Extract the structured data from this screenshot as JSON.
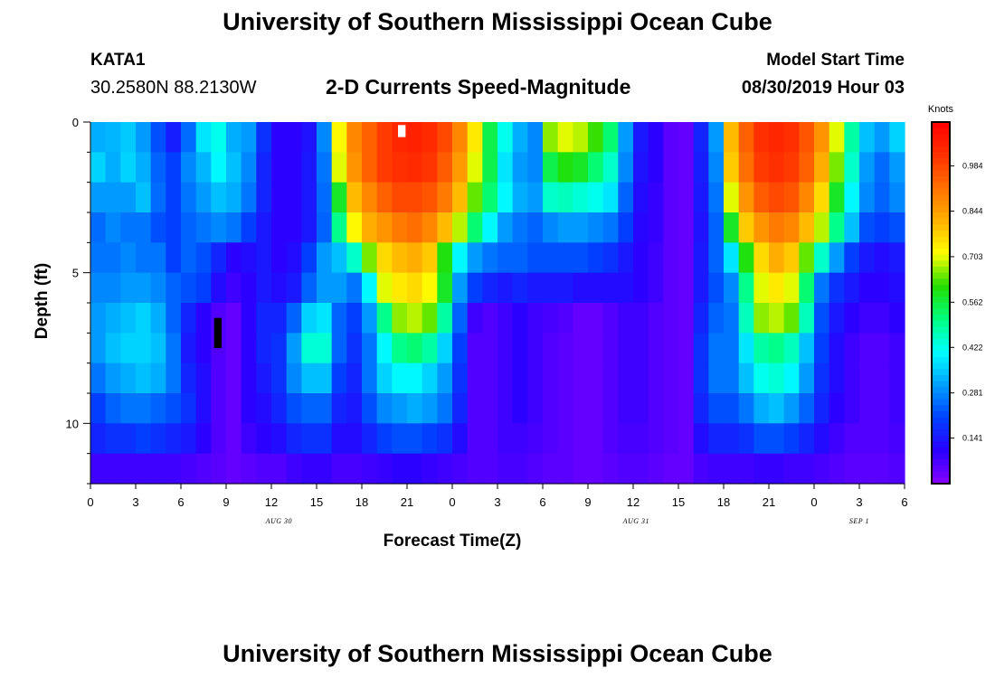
{
  "page": {
    "title_top": "University of Southern Mississippi Ocean Cube",
    "title_bottom": "University of Southern Mississippi Ocean Cube",
    "station_id": "KATA1",
    "station_coords": "30.2580N 88.2130W",
    "subtitle": "2-D Currents Speed-Magnitude",
    "model_start_label": "Model Start Time",
    "model_start_value": "08/30/2019 Hour 03"
  },
  "colors": {
    "background": "#ffffff",
    "ramp": [
      "#8800ff",
      "#2a00ff",
      "#0040ff",
      "#00a0ff",
      "#00ffff",
      "#00ff80",
      "#22dd00",
      "#ffff00",
      "#ffb000",
      "#ff7000",
      "#ff3000",
      "#ff0000"
    ]
  },
  "chart_data": {
    "type": "heatmap",
    "xlabel": "Forecast Time(Z)",
    "ylabel": "Depth (ft)",
    "colorbar_unit": "Knots",
    "colorbar_ticks": [
      "0.984",
      "0.844",
      "0.703",
      "0.562",
      "0.422",
      "0.281",
      "0.141"
    ],
    "colorbar_tick_values": [
      0.984,
      0.844,
      0.703,
      0.562,
      0.422,
      0.281,
      0.141
    ],
    "color_range": [
      0,
      1.12
    ],
    "x_hours_range": [
      0,
      54
    ],
    "y_depth_range": [
      0,
      12
    ],
    "x_tick_hours": [
      0,
      3,
      6,
      9,
      12,
      15,
      18,
      21,
      24,
      27,
      30,
      33,
      36,
      39,
      42,
      45,
      48,
      51,
      54
    ],
    "x_tick_labels": [
      "0",
      "3",
      "6",
      "9",
      "12",
      "15",
      "18",
      "21",
      "0",
      "3",
      "6",
      "9",
      "12",
      "15",
      "18",
      "21",
      "0",
      "3",
      "6"
    ],
    "date_labels": [
      {
        "text": "AUG 30",
        "hour": 12.5
      },
      {
        "text": "AUG 31",
        "hour": 36.2
      },
      {
        "text": "SEP 1",
        "hour": 51.0
      }
    ],
    "y_tick_labels": [
      "0",
      "5",
      "10"
    ],
    "y_tick_values": [
      0,
      5,
      10
    ],
    "depth_levels_ft": [
      0.5,
      1.5,
      2.5,
      3.5,
      4.5,
      5.5,
      6.5,
      7.5,
      8.5,
      9.5,
      10.5,
      11.5
    ],
    "time_columns_hours": [
      0,
      1,
      2,
      3,
      4,
      5,
      6,
      7,
      8,
      9,
      10,
      11,
      12,
      13,
      14,
      15,
      16,
      17,
      18,
      19,
      20,
      21,
      22,
      23,
      24,
      25,
      26,
      27,
      28,
      29,
      30,
      31,
      32,
      33,
      34,
      35,
      36,
      37,
      38,
      39,
      40,
      41,
      42,
      43,
      44,
      45,
      46,
      47,
      48,
      49,
      50,
      51,
      52,
      53
    ],
    "speed_knots": [
      [
        0.32,
        0.33,
        0.35,
        0.3,
        0.22,
        0.15,
        0.25,
        0.38,
        0.42,
        0.32,
        0.3,
        0.18,
        0.1,
        0.1,
        0.13,
        0.28,
        0.72,
        0.88,
        0.94,
        1.0,
        1.04,
        1.05,
        1.03,
        0.98,
        0.88,
        0.74,
        0.55,
        0.42,
        0.32,
        0.28,
        0.66,
        0.7,
        0.68,
        0.62,
        0.52,
        0.3,
        0.14,
        0.1,
        0.05,
        0.04,
        0.16,
        0.3,
        0.8,
        0.94,
        1.02,
        1.04,
        1.02,
        0.96,
        0.86,
        0.7,
        0.48,
        0.34,
        0.3,
        0.36
      ],
      [
        0.36,
        0.32,
        0.36,
        0.32,
        0.24,
        0.2,
        0.28,
        0.33,
        0.4,
        0.34,
        0.28,
        0.16,
        0.1,
        0.1,
        0.14,
        0.26,
        0.7,
        0.86,
        0.94,
        1.0,
        1.02,
        1.03,
        1.01,
        0.95,
        0.85,
        0.7,
        0.55,
        0.38,
        0.3,
        0.28,
        0.55,
        0.6,
        0.58,
        0.52,
        0.45,
        0.28,
        0.13,
        0.1,
        0.05,
        0.04,
        0.15,
        0.28,
        0.78,
        0.92,
        1.0,
        1.02,
        1.0,
        0.94,
        0.82,
        0.65,
        0.45,
        0.3,
        0.25,
        0.3
      ],
      [
        0.3,
        0.3,
        0.3,
        0.34,
        0.25,
        0.2,
        0.26,
        0.3,
        0.34,
        0.32,
        0.26,
        0.16,
        0.1,
        0.1,
        0.14,
        0.25,
        0.58,
        0.8,
        0.88,
        0.94,
        0.98,
        0.98,
        0.96,
        0.9,
        0.8,
        0.64,
        0.52,
        0.4,
        0.32,
        0.3,
        0.45,
        0.46,
        0.44,
        0.42,
        0.38,
        0.24,
        0.12,
        0.09,
        0.05,
        0.04,
        0.14,
        0.26,
        0.7,
        0.86,
        0.95,
        0.98,
        0.96,
        0.88,
        0.76,
        0.58,
        0.4,
        0.28,
        0.24,
        0.28
      ],
      [
        0.25,
        0.28,
        0.26,
        0.26,
        0.22,
        0.2,
        0.24,
        0.26,
        0.28,
        0.26,
        0.2,
        0.14,
        0.1,
        0.1,
        0.14,
        0.24,
        0.5,
        0.72,
        0.82,
        0.86,
        0.9,
        0.92,
        0.88,
        0.8,
        0.68,
        0.52,
        0.4,
        0.3,
        0.26,
        0.24,
        0.28,
        0.3,
        0.3,
        0.28,
        0.26,
        0.2,
        0.11,
        0.09,
        0.05,
        0.04,
        0.13,
        0.24,
        0.58,
        0.78,
        0.86,
        0.9,
        0.88,
        0.8,
        0.68,
        0.5,
        0.34,
        0.22,
        0.2,
        0.22
      ],
      [
        0.26,
        0.26,
        0.28,
        0.26,
        0.26,
        0.2,
        0.24,
        0.22,
        0.16,
        0.1,
        0.12,
        0.14,
        0.1,
        0.12,
        0.2,
        0.3,
        0.34,
        0.45,
        0.65,
        0.76,
        0.8,
        0.82,
        0.78,
        0.6,
        0.4,
        0.3,
        0.26,
        0.24,
        0.24,
        0.22,
        0.22,
        0.22,
        0.22,
        0.2,
        0.18,
        0.14,
        0.1,
        0.08,
        0.05,
        0.04,
        0.14,
        0.24,
        0.38,
        0.6,
        0.76,
        0.82,
        0.78,
        0.64,
        0.45,
        0.3,
        0.2,
        0.14,
        0.12,
        0.14
      ],
      [
        0.28,
        0.28,
        0.3,
        0.3,
        0.28,
        0.24,
        0.22,
        0.2,
        0.12,
        0.08,
        0.1,
        0.14,
        0.12,
        0.14,
        0.24,
        0.3,
        0.3,
        0.26,
        0.4,
        0.7,
        0.74,
        0.76,
        0.72,
        0.58,
        0.3,
        0.2,
        0.16,
        0.14,
        0.16,
        0.14,
        0.14,
        0.14,
        0.12,
        0.12,
        0.12,
        0.12,
        0.1,
        0.08,
        0.05,
        0.04,
        0.14,
        0.22,
        0.28,
        0.5,
        0.7,
        0.74,
        0.7,
        0.52,
        0.26,
        0.18,
        0.14,
        0.1,
        0.1,
        0.12
      ],
      [
        0.3,
        0.32,
        0.34,
        0.36,
        0.32,
        0.24,
        0.16,
        0.1,
        0.06,
        0.04,
        0.1,
        0.16,
        0.16,
        0.24,
        0.36,
        0.38,
        0.24,
        0.2,
        0.3,
        0.5,
        0.66,
        0.68,
        0.64,
        0.48,
        0.24,
        0.08,
        0.06,
        0.08,
        0.1,
        0.08,
        0.07,
        0.06,
        0.04,
        0.04,
        0.06,
        0.08,
        0.08,
        0.06,
        0.05,
        0.04,
        0.16,
        0.24,
        0.26,
        0.46,
        0.66,
        0.68,
        0.64,
        0.46,
        0.22,
        0.14,
        0.1,
        0.08,
        0.08,
        0.1
      ],
      [
        0.3,
        0.34,
        0.36,
        0.36,
        0.34,
        0.26,
        0.14,
        0.1,
        0.06,
        0.04,
        0.1,
        0.16,
        0.18,
        0.3,
        0.44,
        0.44,
        0.24,
        0.18,
        0.26,
        0.4,
        0.5,
        0.52,
        0.48,
        0.36,
        0.2,
        0.06,
        0.06,
        0.08,
        0.1,
        0.08,
        0.06,
        0.05,
        0.04,
        0.04,
        0.06,
        0.08,
        0.08,
        0.06,
        0.05,
        0.04,
        0.18,
        0.26,
        0.26,
        0.38,
        0.48,
        0.5,
        0.46,
        0.34,
        0.2,
        0.12,
        0.08,
        0.06,
        0.06,
        0.08
      ],
      [
        0.26,
        0.3,
        0.32,
        0.34,
        0.32,
        0.26,
        0.16,
        0.12,
        0.06,
        0.04,
        0.1,
        0.14,
        0.18,
        0.28,
        0.34,
        0.34,
        0.2,
        0.16,
        0.26,
        0.36,
        0.4,
        0.4,
        0.36,
        0.3,
        0.18,
        0.06,
        0.06,
        0.08,
        0.1,
        0.08,
        0.06,
        0.05,
        0.04,
        0.04,
        0.06,
        0.08,
        0.08,
        0.06,
        0.05,
        0.04,
        0.18,
        0.26,
        0.26,
        0.34,
        0.42,
        0.44,
        0.4,
        0.3,
        0.18,
        0.12,
        0.08,
        0.06,
        0.06,
        0.08
      ],
      [
        0.2,
        0.24,
        0.26,
        0.26,
        0.24,
        0.22,
        0.18,
        0.12,
        0.06,
        0.04,
        0.1,
        0.12,
        0.16,
        0.22,
        0.24,
        0.24,
        0.16,
        0.14,
        0.22,
        0.28,
        0.3,
        0.32,
        0.3,
        0.26,
        0.16,
        0.06,
        0.06,
        0.08,
        0.1,
        0.08,
        0.06,
        0.05,
        0.04,
        0.04,
        0.06,
        0.08,
        0.08,
        0.06,
        0.05,
        0.04,
        0.16,
        0.22,
        0.22,
        0.26,
        0.32,
        0.34,
        0.3,
        0.24,
        0.16,
        0.1,
        0.08,
        0.06,
        0.06,
        0.08
      ],
      [
        0.16,
        0.18,
        0.18,
        0.2,
        0.18,
        0.16,
        0.14,
        0.1,
        0.06,
        0.04,
        0.08,
        0.1,
        0.12,
        0.16,
        0.18,
        0.18,
        0.12,
        0.12,
        0.16,
        0.2,
        0.22,
        0.22,
        0.2,
        0.18,
        0.12,
        0.06,
        0.06,
        0.08,
        0.08,
        0.07,
        0.06,
        0.05,
        0.04,
        0.04,
        0.06,
        0.07,
        0.07,
        0.06,
        0.05,
        0.04,
        0.12,
        0.16,
        0.16,
        0.18,
        0.22,
        0.22,
        0.2,
        0.16,
        0.12,
        0.08,
        0.06,
        0.06,
        0.06,
        0.07
      ],
      [
        0.08,
        0.08,
        0.08,
        0.08,
        0.08,
        0.08,
        0.07,
        0.06,
        0.05,
        0.04,
        0.05,
        0.06,
        0.06,
        0.08,
        0.09,
        0.09,
        0.07,
        0.07,
        0.08,
        0.09,
        0.1,
        0.1,
        0.09,
        0.08,
        0.07,
        0.06,
        0.06,
        0.07,
        0.07,
        0.06,
        0.05,
        0.05,
        0.04,
        0.04,
        0.05,
        0.06,
        0.06,
        0.05,
        0.04,
        0.04,
        0.07,
        0.08,
        0.08,
        0.08,
        0.09,
        0.09,
        0.08,
        0.08,
        0.07,
        0.06,
        0.05,
        0.05,
        0.05,
        0.06
      ]
    ],
    "markers": [
      {
        "color": "#ffffff",
        "hour_start": 20.4,
        "hour_end": 20.9,
        "depth_start": 0.1,
        "depth_end": 0.5
      },
      {
        "color": "#000000",
        "hour_start": 8.2,
        "hour_end": 8.7,
        "depth_start": 6.5,
        "depth_end": 7.5
      }
    ]
  }
}
